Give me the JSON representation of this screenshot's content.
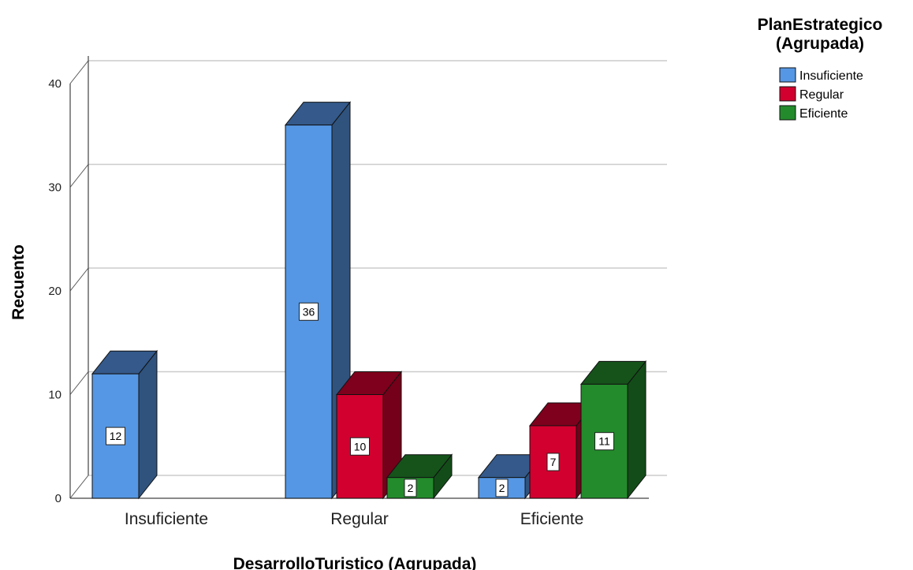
{
  "chart_data": {
    "type": "bar",
    "style": "3d-clustered",
    "title": "",
    "xlabel": "DesarrolloTuristico (Agrupada)",
    "ylabel": "Recuento",
    "categories": [
      "Insuficiente",
      "Regular",
      "Eficiente"
    ],
    "ylim": [
      0,
      40
    ],
    "yticks": [
      0,
      10,
      20,
      30,
      40
    ],
    "grid": true,
    "legend": {
      "title_lines": [
        "PlanEstrategico",
        "(Agrupada)"
      ],
      "placement": "top-right"
    },
    "series": [
      {
        "name": "Insuficiente",
        "color": "#5597e4",
        "values": [
          12,
          36,
          2
        ]
      },
      {
        "name": "Regular",
        "color": "#d2002e",
        "values": [
          null,
          10,
          7
        ]
      },
      {
        "name": "Eficiente",
        "color": "#238b2c",
        "values": [
          null,
          2,
          11
        ]
      }
    ]
  }
}
